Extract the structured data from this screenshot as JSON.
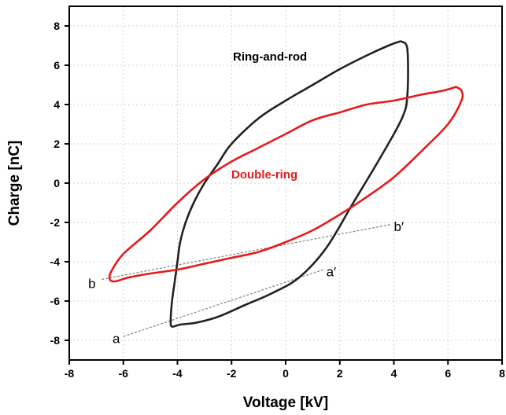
{
  "chart_data": {
    "type": "line",
    "title": "",
    "xlabel": "Voltage [kV]",
    "ylabel": "Charge [nC]",
    "xlim": [
      -8,
      8
    ],
    "ylim": [
      -9,
      9
    ],
    "xticks": [
      -8,
      -6,
      -4,
      -2,
      0,
      2,
      4,
      6,
      8
    ],
    "yticks": [
      -8,
      -6,
      -4,
      -2,
      0,
      2,
      4,
      6,
      8
    ],
    "xtick_labels": [
      "-8",
      "-6",
      "-4",
      "-2",
      "0",
      "2",
      "4",
      "6",
      "8"
    ],
    "ytick_labels": [
      "-8",
      "-6",
      "-4",
      "-2",
      "0",
      "2",
      "4",
      "6",
      "8"
    ],
    "grid": true,
    "series": [
      {
        "name": "Ring-and-rod",
        "color": "#222222",
        "x": [
          4.3,
          4.5,
          4.5,
          4.3,
          3.5,
          2.5,
          1.5,
          0.5,
          -0.5,
          -1.5,
          -2.5,
          -3.3,
          -3.9,
          -4.2,
          -4.25,
          -4.2,
          -4.1,
          -4.0,
          -3.9,
          -3.7,
          -3.4,
          -3.0,
          -2.5,
          -2.0,
          -1.0,
          0.0,
          1.0,
          2.0,
          3.0,
          3.8,
          4.2,
          4.3
        ],
        "y": [
          7.2,
          6.8,
          4.5,
          3.3,
          1.3,
          -1.0,
          -3.3,
          -4.8,
          -5.6,
          -6.2,
          -6.8,
          -7.1,
          -7.2,
          -7.3,
          -7.0,
          -6.0,
          -5.0,
          -4.0,
          -3.0,
          -2.0,
          -1.0,
          0.0,
          1.0,
          2.0,
          3.3,
          4.2,
          5.0,
          5.8,
          6.5,
          7.0,
          7.2,
          7.2
        ]
      },
      {
        "name": "Double-ring",
        "color": "#e8191b",
        "x": [
          6.3,
          6.5,
          6.5,
          6.0,
          5.0,
          4.0,
          3.0,
          2.0,
          1.0,
          0.0,
          -1.0,
          -2.0,
          -3.0,
          -4.0,
          -5.0,
          -5.8,
          -6.3,
          -6.5,
          -6.45,
          -6.0,
          -5.0,
          -4.0,
          -3.0,
          -2.0,
          -1.0,
          0.0,
          1.0,
          2.0,
          3.0,
          4.0,
          5.0,
          5.8,
          6.3
        ],
        "y": [
          4.9,
          4.7,
          4.2,
          3.0,
          1.6,
          0.3,
          -0.7,
          -1.6,
          -2.4,
          -3.0,
          -3.5,
          -3.8,
          -4.1,
          -4.4,
          -4.6,
          -4.8,
          -5.0,
          -4.9,
          -4.5,
          -3.6,
          -2.4,
          -1.0,
          0.2,
          1.1,
          1.8,
          2.5,
          3.2,
          3.6,
          4.0,
          4.2,
          4.5,
          4.7,
          4.9
        ]
      }
    ],
    "series_labels": {
      "ring": "Ring-and-rod",
      "double": "Double-ring"
    },
    "annotations": [
      {
        "label": "a",
        "x": -6.4,
        "y": -7.9
      },
      {
        "label": "a′",
        "x": 1.5,
        "y": -4.5
      },
      {
        "label": "b",
        "x": -7.3,
        "y": -5.1
      },
      {
        "label": "b′",
        "x": 4.0,
        "y": -2.2
      }
    ],
    "guide_lines": [
      {
        "from": [
          -6.0,
          -7.8
        ],
        "to": [
          1.4,
          -4.4
        ]
      },
      {
        "from": [
          -6.8,
          -4.9
        ],
        "to": [
          3.9,
          -2.1
        ]
      }
    ],
    "colors": {
      "ring": "#222222",
      "double": "#e8191b",
      "grid": "#d4d4d4",
      "guide": "#8a8a8a"
    }
  }
}
